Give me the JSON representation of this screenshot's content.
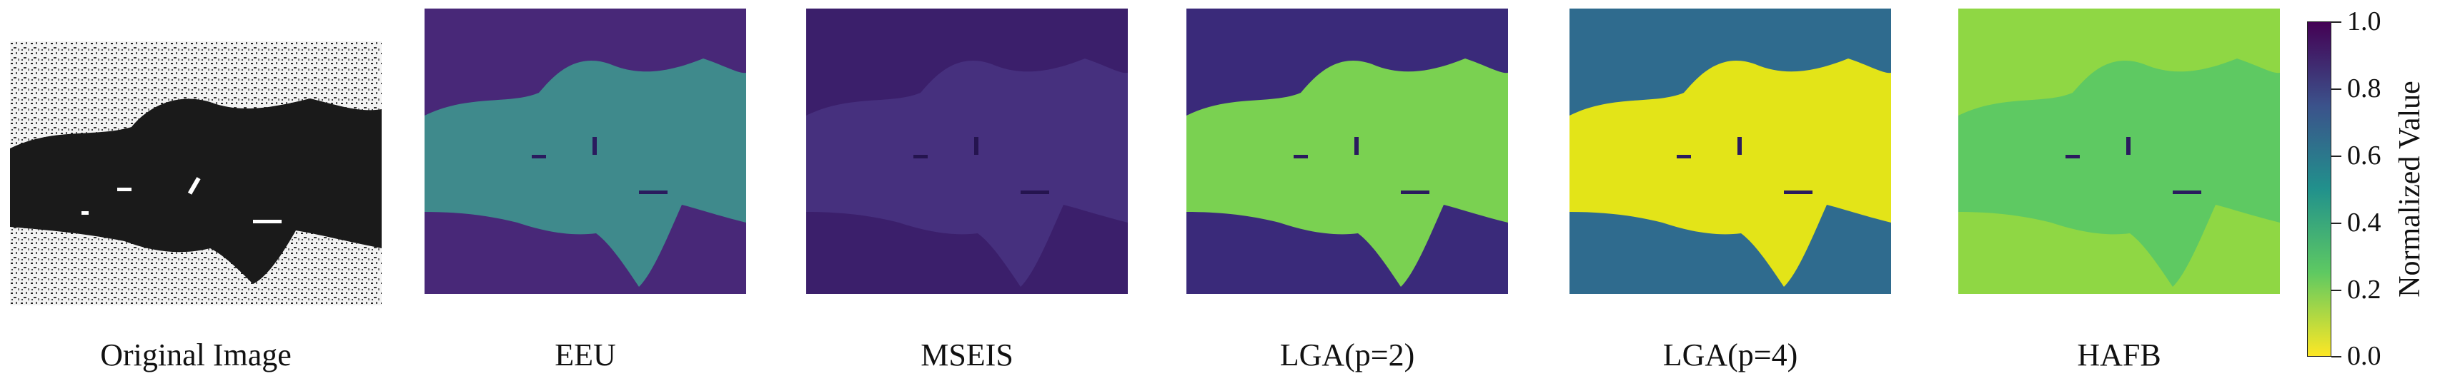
{
  "panels": [
    {
      "label": "Original Image",
      "colormap": "gray-speckle"
    },
    {
      "label": "EEU",
      "colormap": "viridis-reversed"
    },
    {
      "label": "MSEIS",
      "colormap": "viridis-reversed"
    },
    {
      "label": "LGA(p=2)",
      "colormap": "viridis-reversed"
    },
    {
      "label": "LGA(p=4)",
      "colormap": "viridis-reversed"
    },
    {
      "label": "HAFB",
      "colormap": "viridis-reversed"
    }
  ],
  "colorbar": {
    "label": "Normalized Value",
    "ticks": [
      "1.0",
      "0.8",
      "0.6",
      "0.4",
      "0.2",
      "0.0"
    ],
    "colors": [
      "#440154",
      "#3b528b",
      "#21918c",
      "#5ec962",
      "#fde725"
    ]
  },
  "colors": {
    "low_value": "#fde725",
    "high_value": "#440154",
    "water_eeu": "#3f8a8c",
    "water_mseis": "#46307e",
    "water_lga2": "#7ad151",
    "water_lga4": "#e3e418",
    "water_hafb": "#5ec962"
  }
}
